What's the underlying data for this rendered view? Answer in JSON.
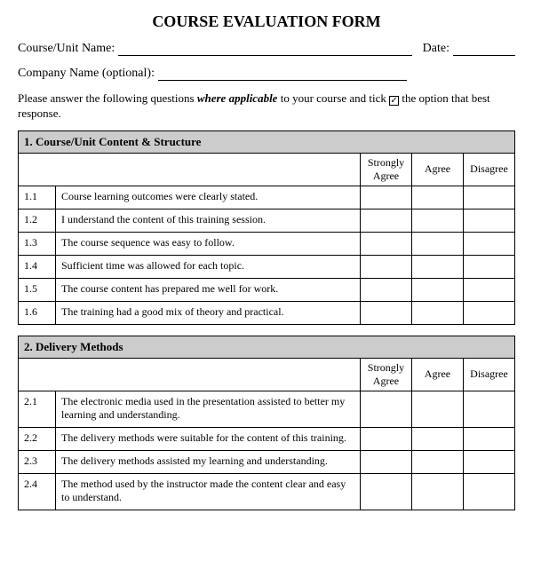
{
  "title": "COURSE EVALUATION FORM",
  "fields": {
    "courseLabel": "Course/Unit Name:",
    "dateLabel": "Date:",
    "companyLabel": "Company Name (optional):"
  },
  "instruction": {
    "pre": "Please answer the following questions ",
    "ital": "where applicable",
    "mid": " to your course and tick ",
    "post": " the option that best response."
  },
  "columns": {
    "c1": "Strongly Agree",
    "c2": "Agree",
    "c3": "Disagree"
  },
  "section1": {
    "heading": "1.    Course/Unit Content & Structure",
    "rows": [
      {
        "n": "1.1",
        "q": "Course learning outcomes were clearly stated."
      },
      {
        "n": "1.2",
        "q": "I understand the content of this training session."
      },
      {
        "n": "1.3",
        "q": "The course sequence was easy to follow."
      },
      {
        "n": "1.4",
        "q": "Sufficient time was allowed for each topic."
      },
      {
        "n": "1.5",
        "q": "The course content has prepared me well for work."
      },
      {
        "n": "1.6",
        "q": "The training had a good mix of theory and practical."
      }
    ]
  },
  "section2": {
    "heading": "2.    Delivery Methods",
    "rows": [
      {
        "n": "2.1",
        "q": "The electronic media used in the presentation assisted to better my learning and understanding."
      },
      {
        "n": "2.2",
        "q": "The delivery methods were suitable for the content of this training."
      },
      {
        "n": "2.3",
        "q": "The delivery methods assisted my learning and understanding."
      },
      {
        "n": "2.4",
        "q": "The method used by the instructor made the content clear and easy to understand."
      }
    ]
  },
  "layout": {
    "colWidths": {
      "num": 42,
      "answer": 58
    },
    "headerBg": "#cccccc",
    "border": "#000000"
  }
}
